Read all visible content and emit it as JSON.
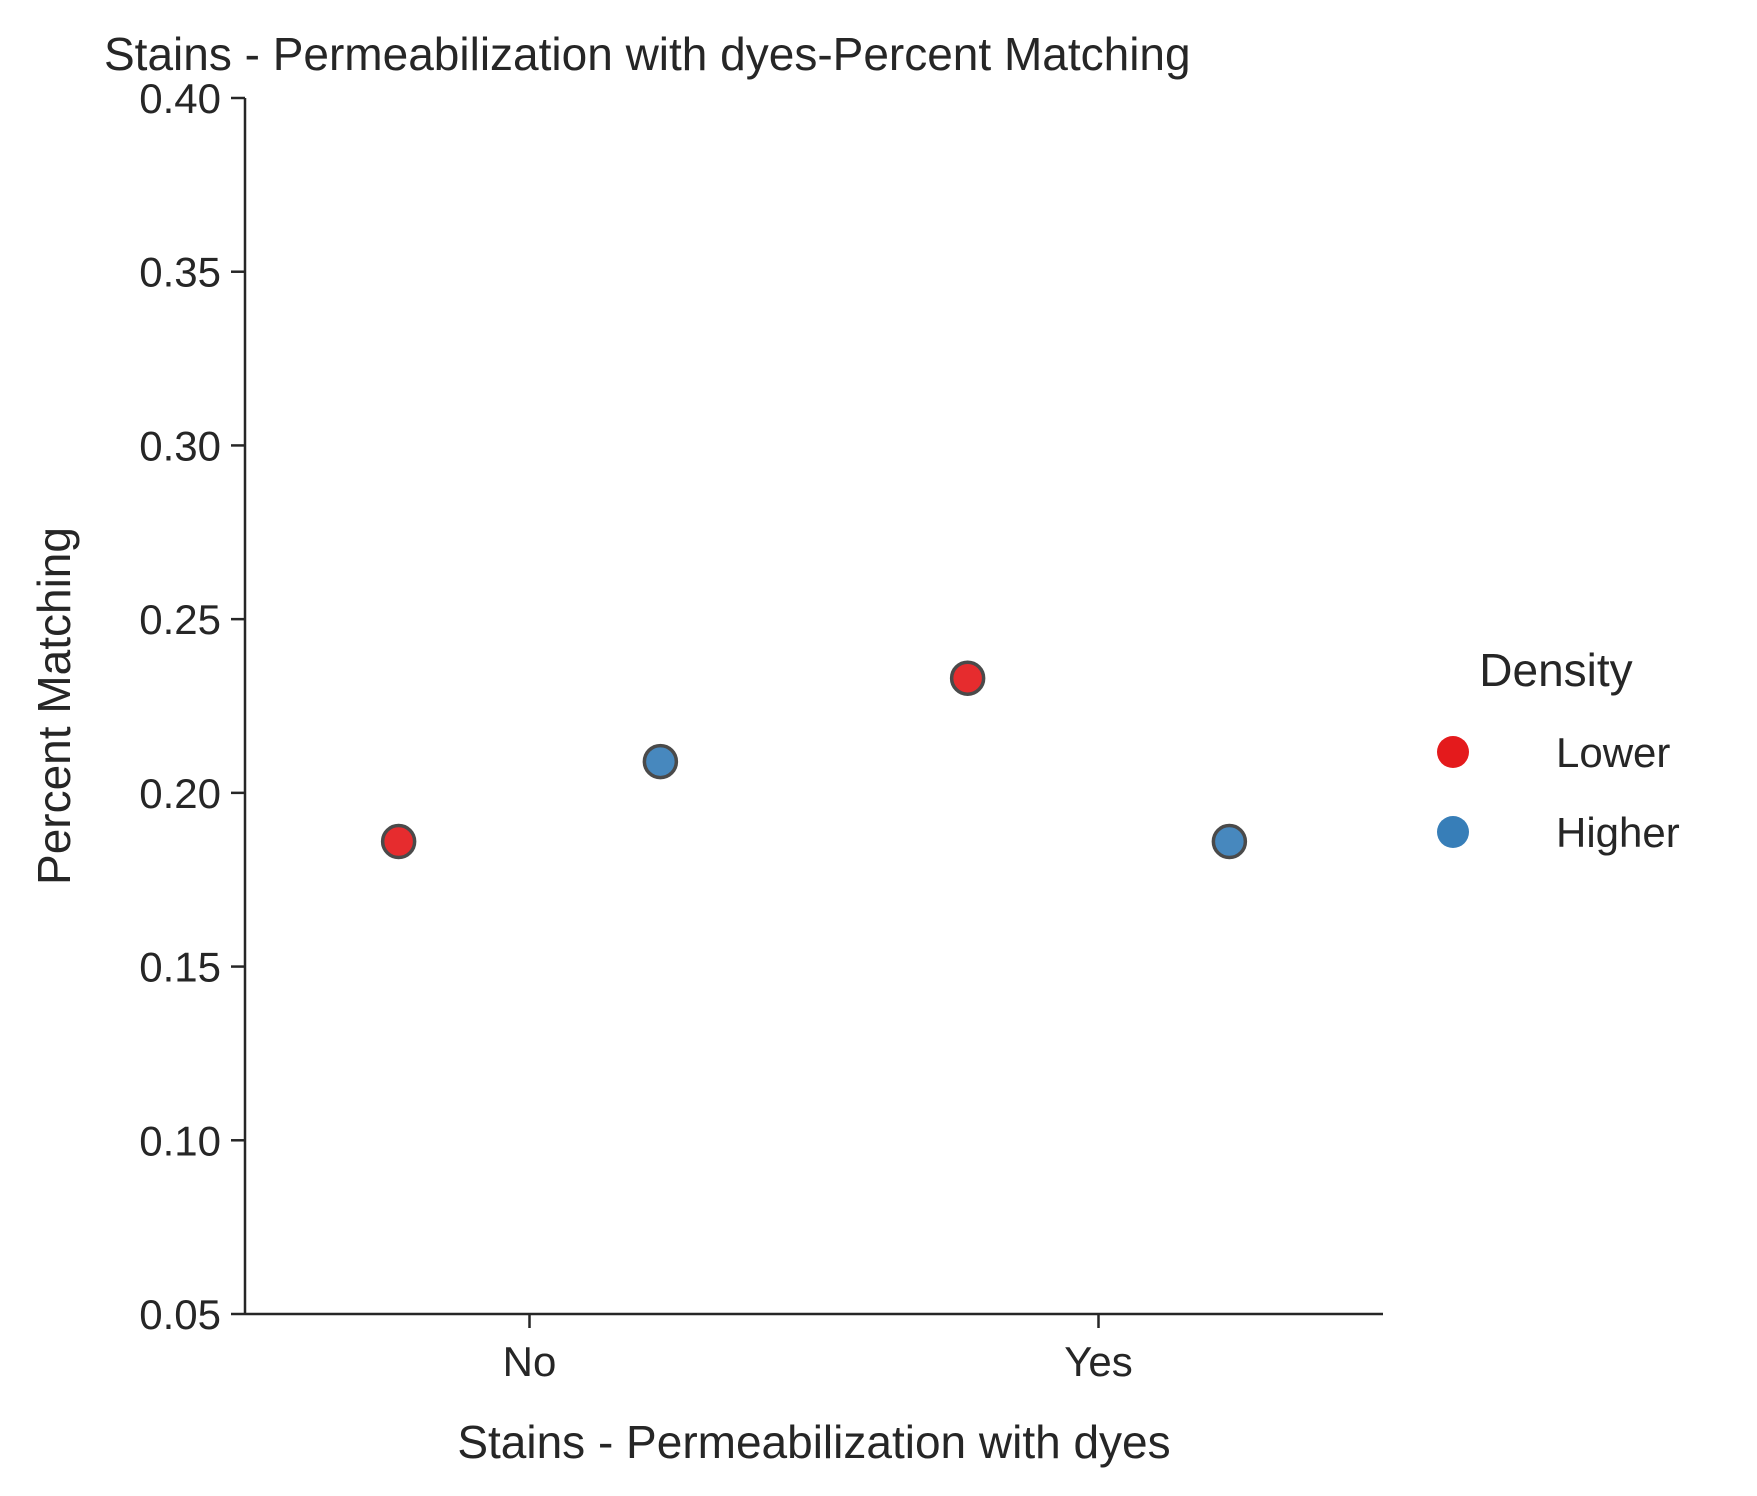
{
  "chart_data": {
    "type": "scatter",
    "title": "Stains - Permeabilization with dyes-Percent Matching",
    "xlabel": "Stains - Permeabilization with dyes",
    "ylabel": "Percent Matching",
    "categories": [
      "No",
      "Yes"
    ],
    "ylim": [
      0.05,
      0.4
    ],
    "yticks": [
      "0.05",
      "0.10",
      "0.15",
      "0.20",
      "0.25",
      "0.30",
      "0.35",
      "0.40"
    ],
    "grid": false,
    "legend": {
      "title": "Density",
      "placement": "right"
    },
    "series": [
      {
        "name": "Lower",
        "color": "#e41a1c",
        "values": [
          0.186,
          0.233
        ]
      },
      {
        "name": "Higher",
        "color": "#377eb8",
        "values": [
          0.209,
          0.186
        ]
      }
    ]
  }
}
